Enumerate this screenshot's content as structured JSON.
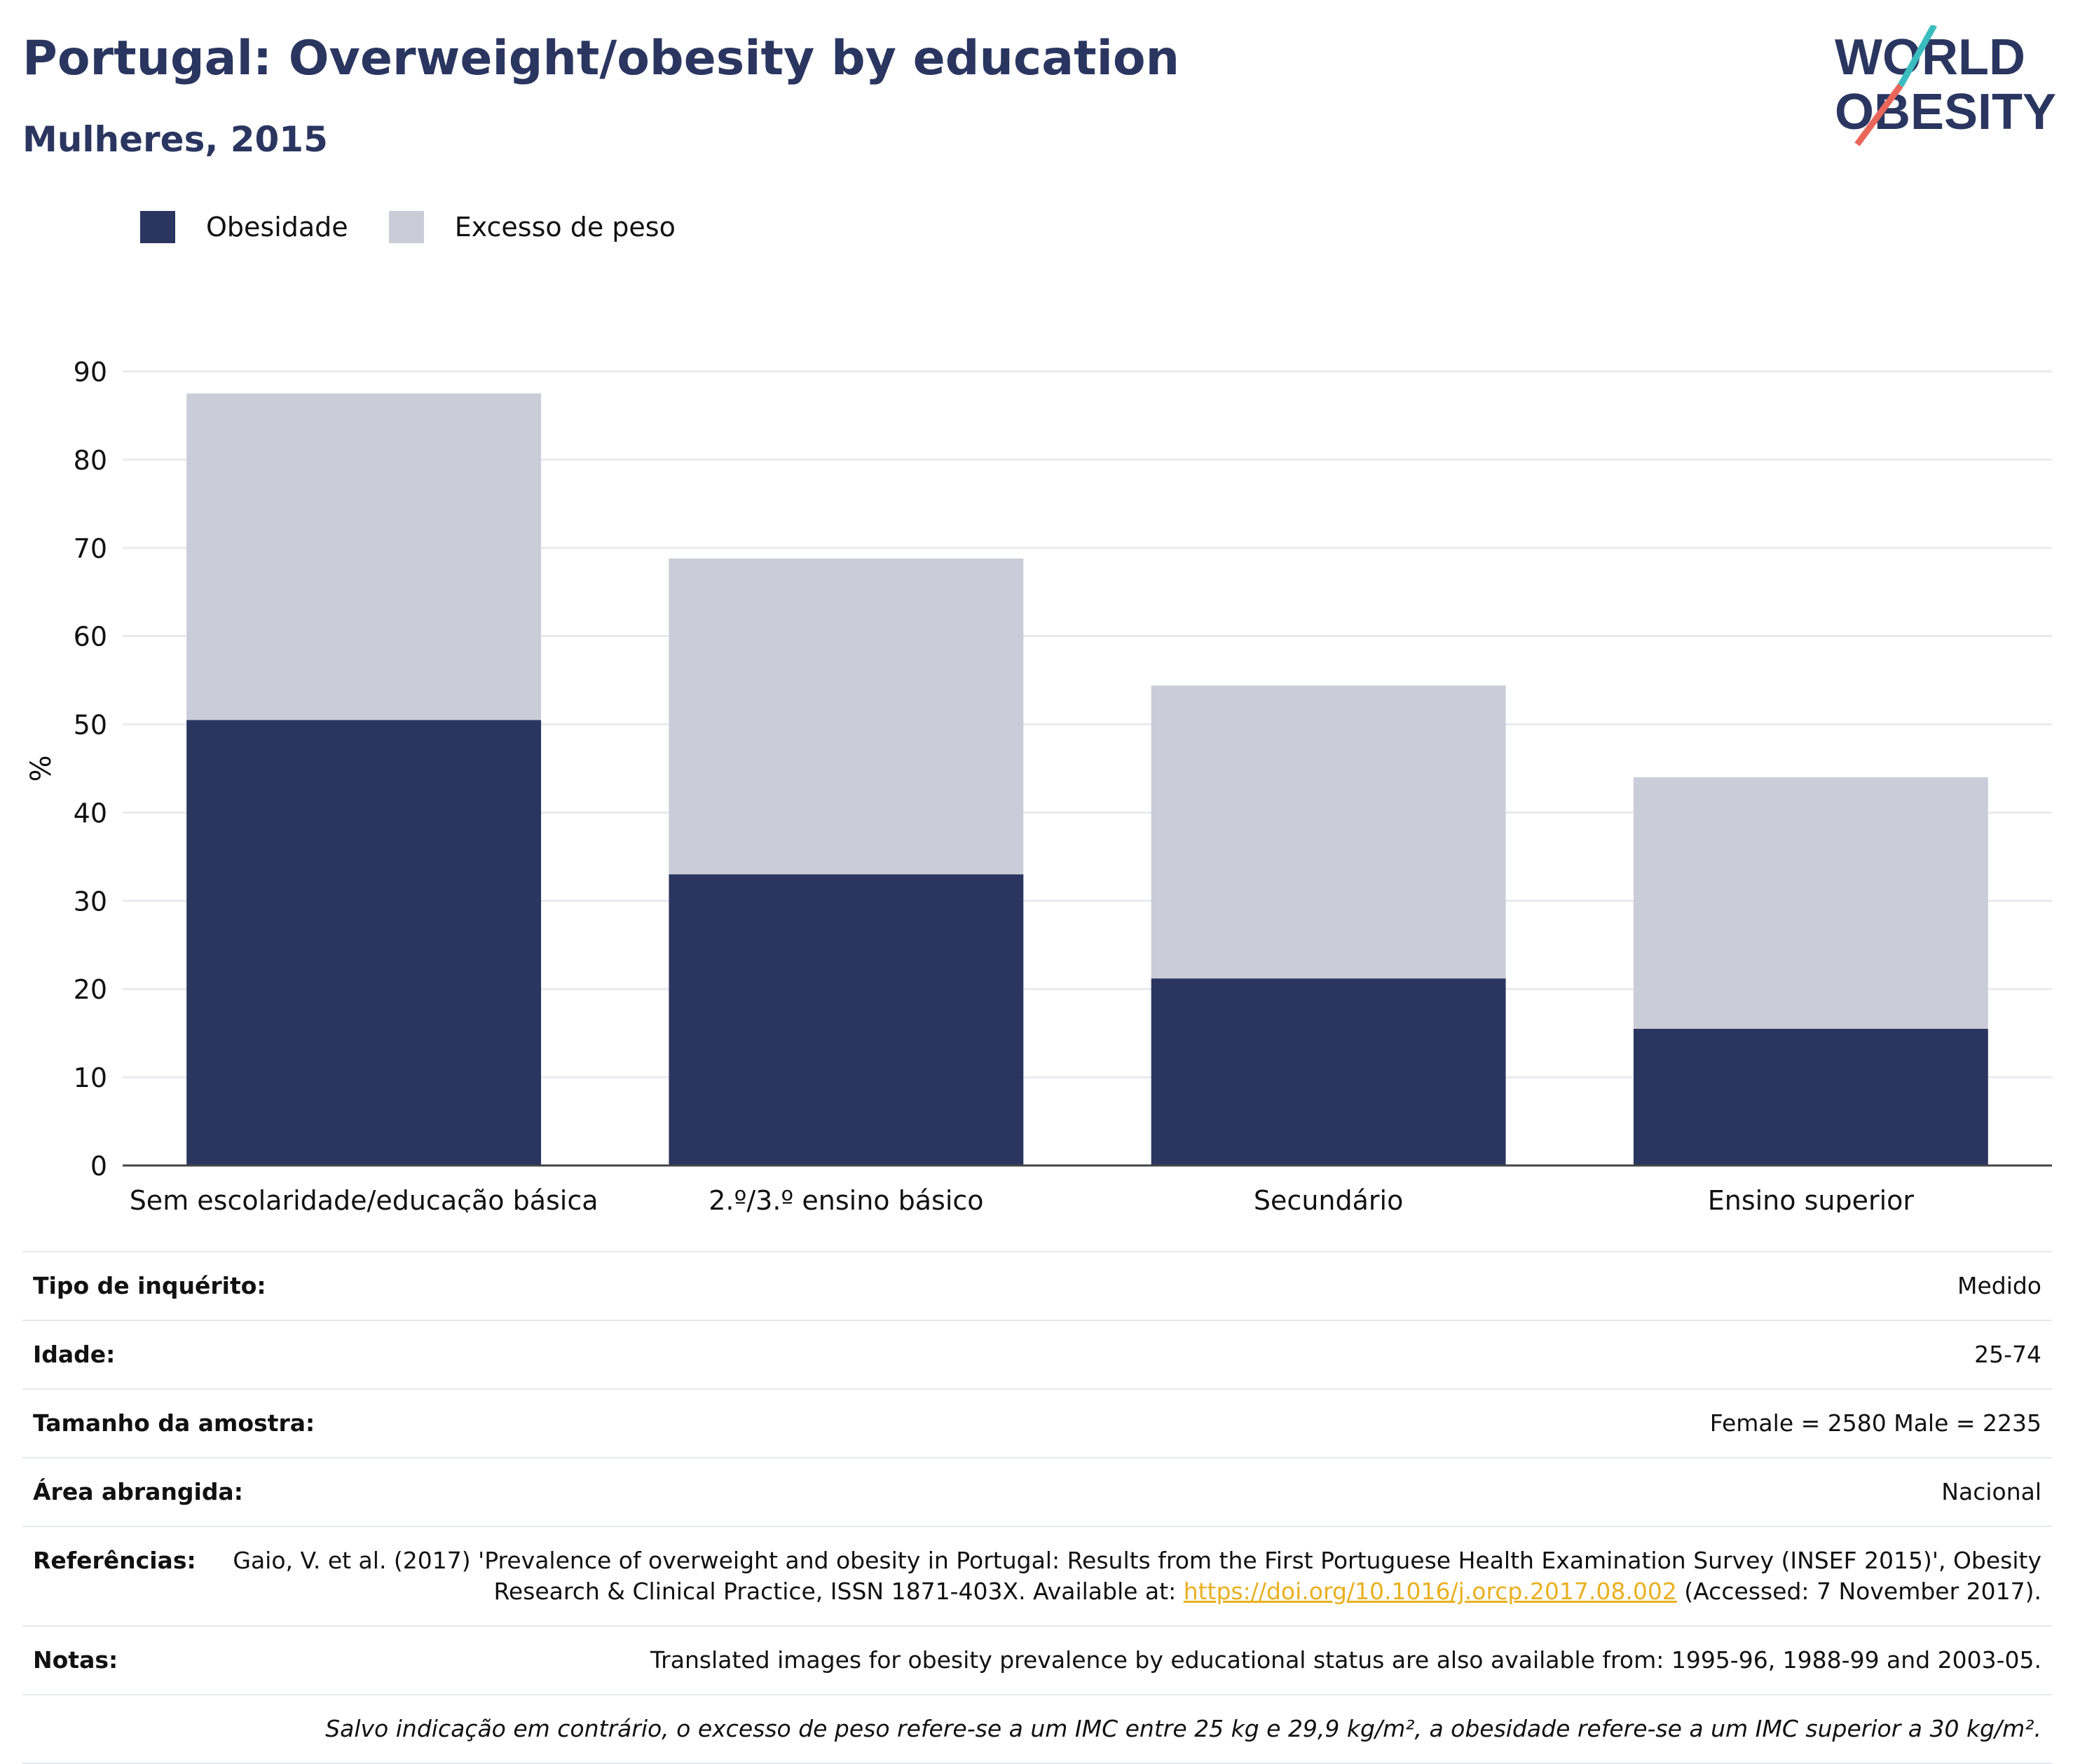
{
  "title": "Portugal: Overweight/obesity by education",
  "subtitle": "Mulheres, 2015",
  "logo": {
    "line1": "WORLD",
    "line2": "OBESITY"
  },
  "colors": {
    "obesity": "#2a3660",
    "overweight": "#caccd8",
    "title": "#2a3660",
    "link": "#e9b021",
    "logo_teal": "#3bbdc0",
    "logo_red": "#e8665a"
  },
  "legend": {
    "obesity": "Obesidade",
    "overweight": "Excesso de peso"
  },
  "chart_data": {
    "type": "bar",
    "stacked": true,
    "categories": [
      "Sem escolaridade/educação básica",
      "2.º/3.º ensino básico",
      "Secundário",
      "Ensino superior"
    ],
    "series": [
      {
        "name": "Obesidade",
        "values": [
          50.5,
          33.0,
          21.2,
          15.5
        ]
      },
      {
        "name": "Excesso de peso",
        "values": [
          37.0,
          35.8,
          33.2,
          28.5
        ]
      }
    ],
    "ylabel": "%",
    "ylim": [
      0,
      90
    ],
    "yticks": [
      0,
      10,
      20,
      30,
      40,
      50,
      60,
      70,
      80,
      90
    ],
    "grid": true,
    "legend_position": "top-left"
  },
  "meta": {
    "survey_type_label": "Tipo de inquérito:",
    "survey_type": "Medido",
    "age_label": "Idade:",
    "age": "25-74",
    "sample_label": "Tamanho da amostra:",
    "sample": "Female = 2580 Male = 2235",
    "area_label": "Área abrangida:",
    "area": "Nacional",
    "refs_label": "Referências:",
    "refs_text1": "Gaio, V. et al. (2017) 'Prevalence of overweight and obesity in Portugal: Results from the First Portuguese Health Examination Survey (INSEF 2015)', Obesity Research & Clinical Practice, ISSN 1871-403X. Available at: ",
    "refs_link": "https://doi.org/10.1016/j.orcp.2017.08.002",
    "refs_text2": " (Accessed: 7 November 2017).",
    "notes_label": "Notas:",
    "notes": "Translated images for obesity prevalence by educational status are also available from: 1995-96, 1988-99 and 2003-05.",
    "footnote": "Salvo indicação em contrário, o excesso de peso refere-se a um IMC entre 25 kg e 29,9 kg/m², a obesidade refere-se a um IMC superior a 30 kg/m²."
  }
}
